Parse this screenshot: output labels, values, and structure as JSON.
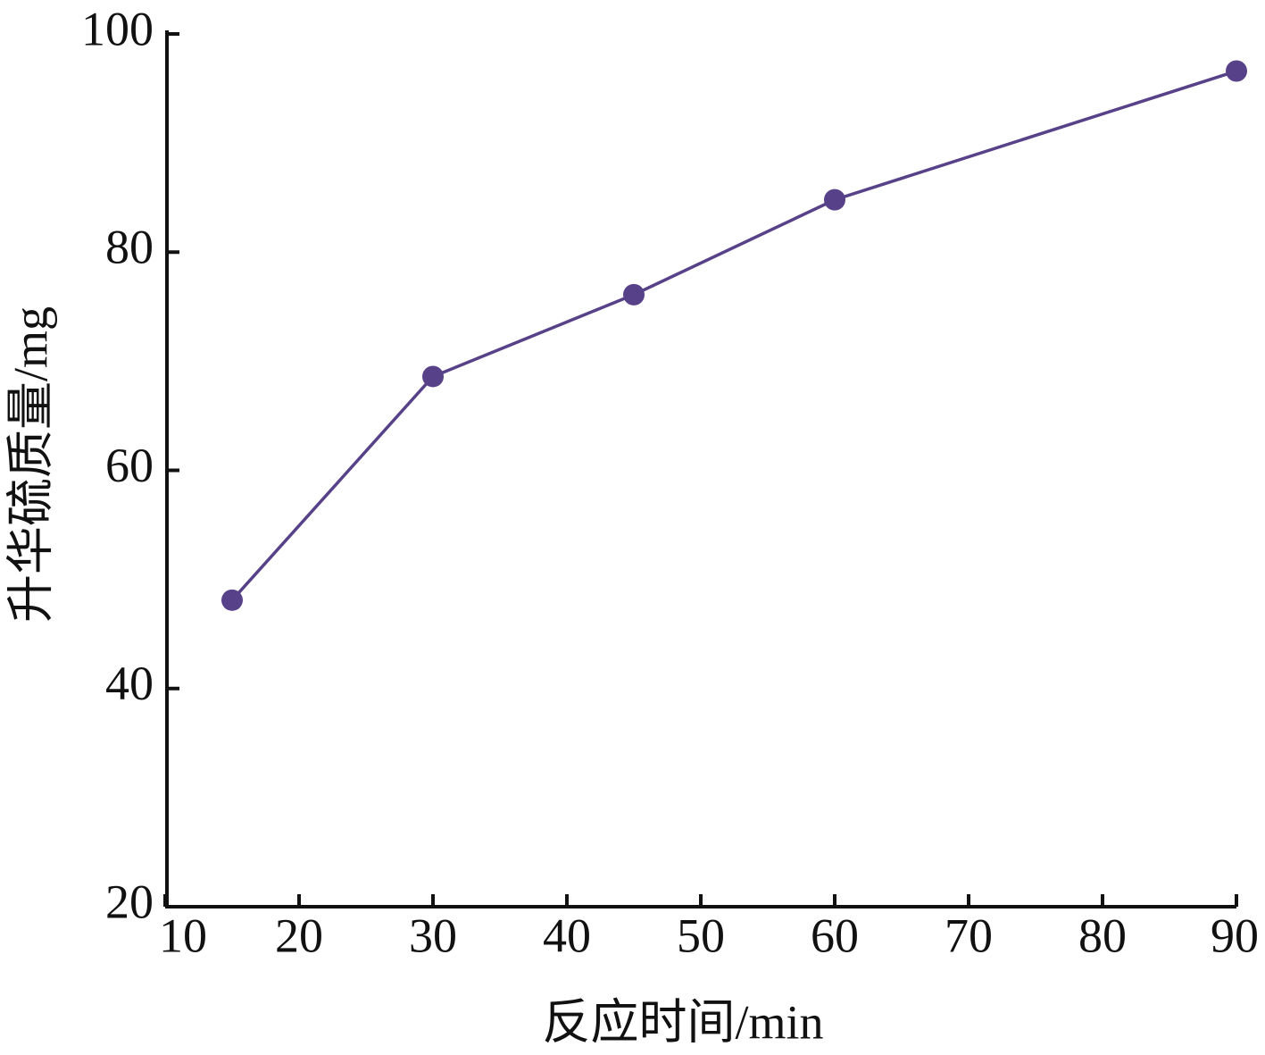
{
  "chart_data": {
    "type": "line",
    "x_label": "反应时间/min",
    "y_label": "升华硫质量/mg",
    "x": [
      15,
      30,
      45,
      60,
      90
    ],
    "series": [
      {
        "color": "#574189",
        "values": [
          48.1,
          68.6,
          76.1,
          84.8,
          96.6
        ]
      }
    ],
    "xlim": [
      10,
      90
    ],
    "xticks": [
      10,
      20,
      30,
      40,
      50,
      60,
      70,
      80,
      90
    ],
    "ylim": [
      20,
      100
    ],
    "yticks": [
      20,
      40,
      60,
      80,
      100
    ],
    "grid": false
  }
}
